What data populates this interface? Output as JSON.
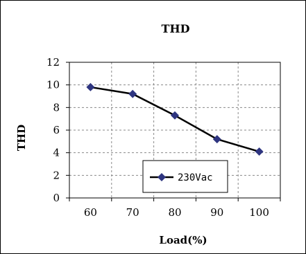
{
  "chart_data": {
    "type": "line",
    "title": "THD",
    "xlabel": "Load(%)",
    "ylabel": "THD",
    "categories": [
      "60",
      "70",
      "80",
      "90",
      "100"
    ],
    "series": [
      {
        "name": "230Vac",
        "values": [
          9.8,
          9.2,
          7.3,
          5.2,
          4.1
        ]
      }
    ],
    "ylim": [
      0,
      12
    ],
    "y_ticks": [
      0,
      2,
      4,
      6,
      8,
      10,
      12
    ],
    "grid": true,
    "legend_position": "bottom-center",
    "colors": {
      "line": "#000000",
      "marker": "#2e3580",
      "grid": "#888888"
    }
  }
}
